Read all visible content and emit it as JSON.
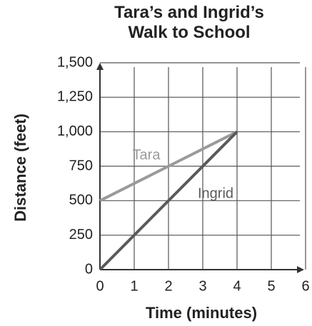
{
  "chart_data": {
    "type": "line",
    "title": "Tara’s and Ingrid’s Walk to School",
    "x_label": "Time (minutes)",
    "y_label": "Distance (feet)",
    "x": [
      0,
      4
    ],
    "series": [
      {
        "name": "Tara",
        "color": "#9a9a9a",
        "values": [
          500,
          1000
        ]
      },
      {
        "name": "Ingrid",
        "color": "#5a5a5a",
        "values": [
          0,
          1000
        ]
      }
    ],
    "xlim": [
      0,
      6
    ],
    "xticks": [
      0,
      1,
      2,
      3,
      4,
      5,
      6
    ],
    "ylim": [
      0,
      1500
    ],
    "yticks": [
      0,
      250,
      500,
      750,
      {
        "value": 1000,
        "label": "1,000"
      },
      {
        "value": 1250,
        "label": "1,250"
      },
      {
        "value": 1500,
        "label": "1,500"
      }
    ],
    "grid": true
  }
}
